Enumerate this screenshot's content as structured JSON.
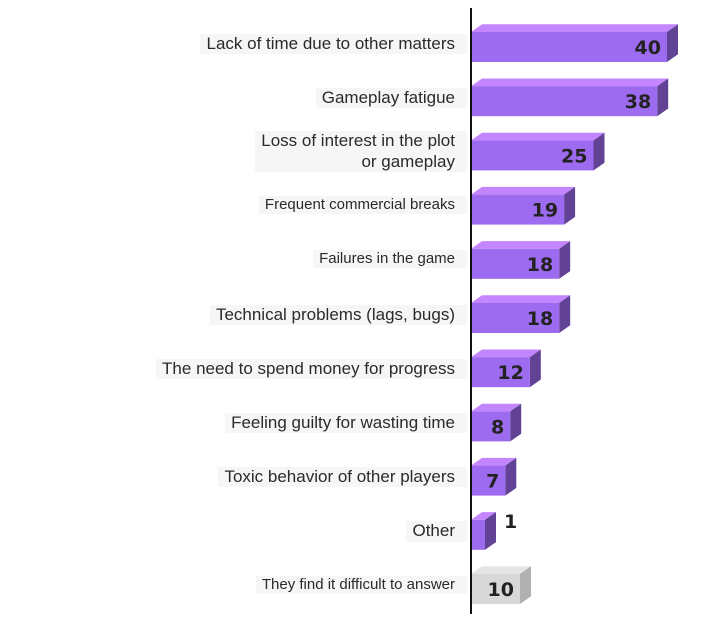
{
  "chart_data": {
    "type": "bar",
    "orientation": "horizontal",
    "categories": [
      "Lack of time due to other matters",
      "Gameplay fatigue",
      "Loss of interest in the plot\nor gameplay",
      "Frequent commercial breaks",
      "Failures in the game",
      "Technical problems (lags, bugs)",
      "The need to spend money for progress",
      "Feeling guilty for wasting time",
      "Toxic behavior of other players",
      "Other",
      "They find it difficult to answer"
    ],
    "values": [
      40,
      38,
      25,
      19,
      18,
      18,
      12,
      8,
      7,
      1,
      10
    ],
    "value_labels": [
      "40",
      "38",
      "25",
      "19",
      "18",
      "18",
      "12",
      "8",
      "7",
      "1",
      "10"
    ],
    "highlight_color": "#9d6bef",
    "neutral_color": "#d8d8d8",
    "neutral_category_index": 10,
    "title": "",
    "xlabel": "",
    "ylabel": "",
    "xlim": [
      0,
      40
    ],
    "grid": false,
    "legend": "none"
  }
}
